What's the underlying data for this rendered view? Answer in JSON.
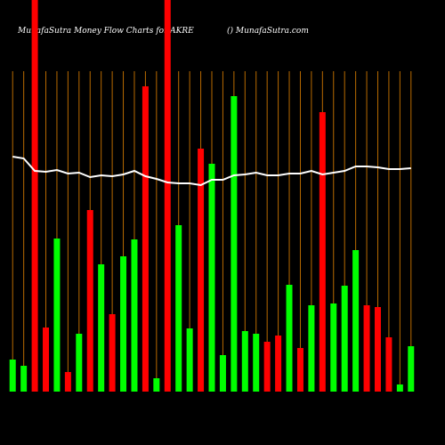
{
  "chart_data": {
    "type": "bar",
    "title": "MunafaSutra  Money Flow  Charts for AKRE",
    "subtitle": "() MunafaSutra.com",
    "categories": [
      null,
      null,
      null,
      null,
      null,
      null,
      null,
      null,
      null,
      null,
      null,
      null,
      null,
      null,
      null,
      null,
      null,
      null,
      null,
      null,
      null,
      null,
      null,
      null,
      null,
      null,
      null,
      null,
      null,
      null,
      null,
      null,
      null,
      null,
      null,
      null,
      null
    ],
    "series": [
      {
        "name": null,
        "colors": [
          "#00ff00",
          "#00ff00",
          "#ff0000",
          "#ff0000",
          "#00ff00",
          "#ff0000",
          "#00ff00",
          "#ff0000",
          "#00ff00",
          "#ff0000",
          "#00ff00",
          "#00ff00",
          "#ff0000",
          "#00ff00",
          "#ff0000",
          "#00ff00",
          "#00ff00",
          "#ff0000",
          "#00ff00",
          "#00ff00",
          "#00ff00",
          "#00ff00",
          "#00ff00",
          "#ff0000",
          "#ff0000",
          "#00ff00",
          "#ff0000",
          "#00ff00",
          "#ff0000",
          "#00ff00",
          "#00ff00",
          "#00ff00",
          "#ff0000",
          "#ff0000",
          "#ff0000",
          "#00ff00",
          "#00ff00"
        ],
        "values": [
          36,
          29,
          440,
          72,
          172,
          22,
          65,
          204,
          143,
          87,
          152,
          171,
          343,
          15,
          440,
          187,
          71,
          273,
          256,
          41,
          332,
          68,
          65,
          56,
          63,
          120,
          49,
          97,
          314,
          99,
          119,
          159,
          97,
          95,
          61,
          8,
          51
        ]
      },
      {
        "name": null,
        "type": "line",
        "color": "#ffffff",
        "values": [
          264,
          262,
          248,
          247,
          249,
          245,
          246,
          241,
          243,
          242,
          244,
          248,
          242,
          239,
          235,
          234,
          234,
          232,
          238,
          238,
          243,
          244,
          246,
          243,
          243,
          245,
          245,
          248,
          244,
          246,
          248,
          253,
          253,
          252,
          250,
          250,
          251
        ]
      }
    ],
    "ylim": [
      0,
      440
    ]
  }
}
